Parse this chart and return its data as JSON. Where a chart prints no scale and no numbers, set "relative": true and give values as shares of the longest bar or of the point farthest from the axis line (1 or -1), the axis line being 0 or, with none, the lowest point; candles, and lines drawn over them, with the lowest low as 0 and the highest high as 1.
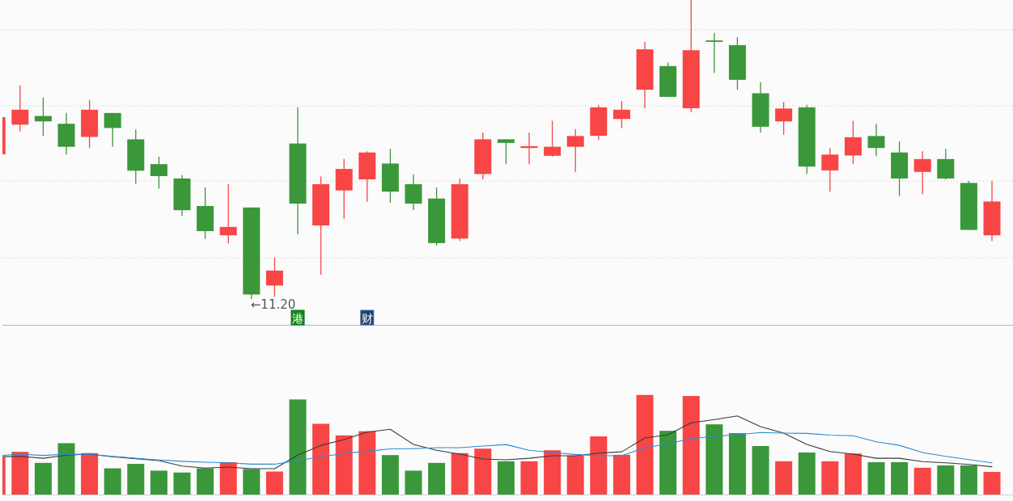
{
  "chart_data": [
    {
      "type": "candlestick",
      "relative": true,
      "grid": "y",
      "categories": [
        null,
        null,
        null,
        null,
        null,
        null,
        null,
        null,
        null,
        null,
        null,
        null,
        null,
        null,
        null,
        null,
        null,
        null,
        null,
        null,
        null,
        null,
        null,
        null,
        null,
        null,
        null,
        null,
        null,
        null,
        null,
        null,
        null,
        null,
        null,
        null,
        null,
        null,
        null,
        null,
        null,
        null,
        null,
        null
      ],
      "ohlc": [
        [
          0.484,
          0.608,
          0.484,
          0.608
        ],
        [
          0.583,
          0.714,
          0.56,
          0.633
        ],
        [
          0.612,
          0.674,
          0.545,
          0.594
        ],
        [
          0.586,
          0.622,
          0.483,
          0.509
        ],
        [
          0.542,
          0.666,
          0.505,
          0.633
        ],
        [
          0.622,
          0.622,
          0.509,
          0.572
        ],
        [
          0.534,
          0.567,
          0.385,
          0.429
        ],
        [
          0.451,
          0.476,
          0.369,
          0.411
        ],
        [
          0.403,
          0.414,
          0.278,
          0.297
        ],
        [
          0.311,
          0.373,
          0.201,
          0.227
        ],
        [
          0.213,
          0.384,
          0.186,
          0.241
        ],
        [
          0.306,
          0.306,
          0,
          0.015
        ],
        [
          0.045,
          0.138,
          0.007,
          0.095
        ],
        [
          0.52,
          0.641,
          0.216,
          0.319
        ],
        [
          0.246,
          0.41,
          0.081,
          0.384
        ],
        [
          0.363,
          0.468,
          0.268,
          0.435
        ],
        [
          0.4,
          0.494,
          0.326,
          0.49
        ],
        [
          0.453,
          0.502,
          0.322,
          0.359
        ],
        [
          0.384,
          0.417,
          0.297,
          0.319
        ],
        [
          0.336,
          0.373,
          0.179,
          0.187
        ],
        [
          0.202,
          0.403,
          0.194,
          0.384
        ],
        [
          0.418,
          0.557,
          0.4,
          0.534
        ],
        [
          0.534,
          0.534,
          0.451,
          0.522
        ],
        [
          0.505,
          0.557,
          0.451,
          0.511
        ],
        [
          0.479,
          0.596,
          0.476,
          0.509
        ],
        [
          0.509,
          0.568,
          0.425,
          0.545
        ],
        [
          0.546,
          0.649,
          0.532,
          0.641
        ],
        [
          0.602,
          0.662,
          0.571,
          0.633
        ],
        [
          0.7,
          0.86,
          0.638,
          0.835
        ],
        [
          0.779,
          0.791,
          0.676,
          0.676
        ],
        [
          0.638,
          1,
          0.624,
          0.832
        ],
        [
          0.865,
          0.89,
          0.756,
          0.86
        ],
        [
          0.849,
          0.876,
          0.7,
          0.733
        ],
        [
          0.688,
          0.725,
          0.557,
          0.576
        ],
        [
          0.594,
          0.659,
          0.549,
          0.637
        ],
        [
          0.641,
          0.649,
          0.418,
          0.443
        ],
        [
          0.43,
          0.505,
          0.359,
          0.483
        ],
        [
          0.48,
          0.596,
          0.451,
          0.541
        ],
        [
          0.545,
          0.586,
          0.478,
          0.505
        ],
        [
          0.49,
          0.527,
          0.344,
          0.403
        ],
        [
          0.425,
          0.494,
          0.351,
          0.468
        ],
        [
          0.468,
          0.502,
          0.399,
          0.403
        ],
        [
          0.388,
          0.395,
          0.231,
          0.231
        ],
        [
          0.213,
          0.395,
          0.194,
          0.326
        ]
      ],
      "colors": [
        "#f84545",
        "#f84545",
        "#3a973a",
        "#3a973a",
        "#f84545",
        "#3a973a",
        "#3a973a",
        "#3a973a",
        "#3a973a",
        "#3a973a",
        "#f84545",
        "#3a973a",
        "#f84545",
        "#3a973a",
        "#f84545",
        "#f84545",
        "#f84545",
        "#3a973a",
        "#3a973a",
        "#3a973a",
        "#f84545",
        "#f84545",
        "#3a973a",
        "#f84545",
        "#f84545",
        "#f84545",
        "#f84545",
        "#f84545",
        "#f84545",
        "#3a973a",
        "#f84545",
        "#3a973a",
        "#3a973a",
        "#3a973a",
        "#f84545",
        "#3a973a",
        "#f84545",
        "#f84545",
        "#3a973a",
        "#3a973a",
        "#f84545",
        "#3a973a",
        "#3a973a",
        "#f84545"
      ],
      "annotations": [
        {
          "text": "←11.20",
          "y": 0
        },
        "港",
        "财"
      ]
    },
    {
      "type": "bar",
      "relative": true,
      "categories": [
        null,
        null,
        null,
        null,
        null,
        null,
        null,
        null,
        null,
        null,
        null,
        null,
        null,
        null,
        null,
        null,
        null,
        null,
        null,
        null,
        null,
        null,
        null,
        null,
        null,
        null,
        null,
        null,
        null,
        null,
        null,
        null,
        null,
        null,
        null,
        null,
        null,
        null,
        null,
        null,
        null,
        null,
        null,
        null
      ],
      "series": [
        {
          "type": "bar",
          "values": [
            0.373,
            0.429,
            0.318,
            0.516,
            0.416,
            0.263,
            0.308,
            0.24,
            0.221,
            0.263,
            0.325,
            0.256,
            0.231,
            0.955,
            0.711,
            0.594,
            0.636,
            0.396,
            0.24,
            0.318,
            0.416,
            0.461,
            0.334,
            0.334,
            0.445,
            0.39,
            0.584,
            0.399,
            1,
            0.64,
            0.99,
            0.705,
            0.617,
            0.487,
            0.334,
            0.422,
            0.334,
            0.412,
            0.325,
            0.325,
            0.269,
            0.292,
            0.292,
            0.227
          ],
          "colors": [
            "#f84545",
            "#f84545",
            "#3a973a",
            "#3a973a",
            "#f84545",
            "#3a973a",
            "#3a973a",
            "#3a973a",
            "#3a973a",
            "#3a973a",
            "#f84545",
            "#3a973a",
            "#f84545",
            "#3a973a",
            "#f84545",
            "#f84545",
            "#f84545",
            "#3a973a",
            "#3a973a",
            "#3a973a",
            "#f84545",
            "#f84545",
            "#3a973a",
            "#f84545",
            "#f84545",
            "#f84545",
            "#f84545",
            "#f84545",
            "#f84545",
            "#3a973a",
            "#f84545",
            "#3a973a",
            "#3a973a",
            "#3a973a",
            "#f84545",
            "#3a973a",
            "#f84545",
            "#f84545",
            "#3a973a",
            "#3a973a",
            "#f84545",
            "#3a973a",
            "#3a973a",
            "#f84545"
          ]
        },
        {
          "type": "line",
          "color": "#3a3a3a",
          "values": [
            0.38,
            0.383,
            0.364,
            0.396,
            0.406,
            0.38,
            0.36,
            0.341,
            0.286,
            0.266,
            0.276,
            0.26,
            0.26,
            0.396,
            0.494,
            0.552,
            0.627,
            0.656,
            0.503,
            0.445,
            0.406,
            0.357,
            0.349,
            0.364,
            0.39,
            0.39,
            0.416,
            0.429,
            0.568,
            0.601,
            0.721,
            0.753,
            0.789,
            0.682,
            0.617,
            0.503,
            0.432,
            0.406,
            0.364,
            0.364,
            0.331,
            0.318,
            0.302,
            0.279
          ]
        },
        {
          "type": "line",
          "color": "#2b8bd6",
          "values": [
            0.39,
            0.406,
            0.393,
            0.406,
            0.403,
            0.383,
            0.364,
            0.347,
            0.334,
            0.325,
            0.318,
            0.305,
            0.305,
            0.341,
            0.38,
            0.412,
            0.435,
            0.458,
            0.461,
            0.471,
            0.471,
            0.487,
            0.502,
            0.445,
            0.422,
            0.403,
            0.39,
            0.39,
            0.471,
            0.51,
            0.562,
            0.584,
            0.601,
            0.623,
            0.617,
            0.614,
            0.597,
            0.591,
            0.529,
            0.494,
            0.422,
            0.383,
            0.351,
            0.318
          ]
        }
      ]
    }
  ]
}
